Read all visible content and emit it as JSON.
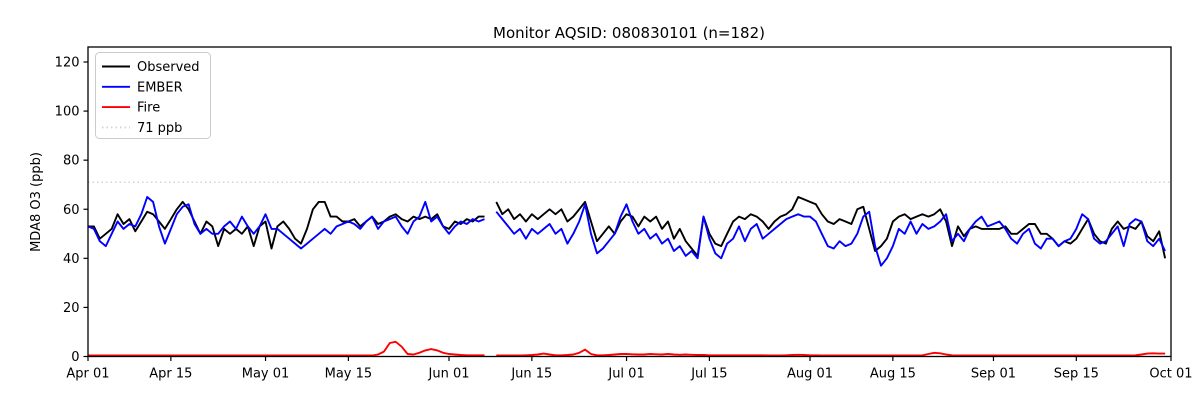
{
  "title": "Monitor AQSID: 080830101 (n=182)",
  "chart_data": {
    "type": "line",
    "title": "Monitor AQSID: 080830101 (n=182)",
    "xlabel": "",
    "ylabel": "MDA8 O3 (ppb)",
    "ylim": [
      0,
      126
    ],
    "y_ticks": [
      0,
      20,
      40,
      60,
      80,
      100,
      120
    ],
    "x_tick_labels": [
      "Apr 01",
      "Apr 15",
      "May 01",
      "May 15",
      "Jun 01",
      "Jun 15",
      "Jul 01",
      "Jul 15",
      "Aug 01",
      "Aug 15",
      "Sep 01",
      "Sep 15",
      "Oct 01"
    ],
    "x_tick_days": [
      0,
      14,
      30,
      44,
      61,
      75,
      91,
      105,
      122,
      136,
      153,
      167,
      183
    ],
    "x_domain_days": 183,
    "x_note": "daily MDA8 values from Apr 01 through Sep 30; null = missing day (Jun 08), n=182",
    "grid": false,
    "legend_position": "upper left",
    "threshold": {
      "label": "71 ppb",
      "value": 71,
      "color": "#d3d3d3",
      "style": "dotted"
    },
    "series": [
      {
        "name": "Observed",
        "color": "#000000",
        "values": [
          53,
          53,
          48,
          50,
          52,
          58,
          54,
          56,
          51,
          55,
          59,
          58,
          55,
          52,
          56,
          60,
          63,
          60,
          55,
          50,
          55,
          53,
          45,
          52,
          50,
          52,
          50,
          53,
          45,
          53,
          55,
          44,
          53,
          55,
          52,
          48,
          46,
          52,
          60,
          63,
          63,
          57,
          57,
          55,
          55,
          56,
          53,
          55,
          57,
          54,
          55,
          57,
          58,
          56,
          55,
          57,
          56,
          57,
          56,
          58,
          53,
          52,
          55,
          54,
          56,
          55,
          57,
          57,
          null,
          63,
          58,
          60,
          56,
          58,
          55,
          58,
          56,
          58,
          60,
          58,
          60,
          55,
          57,
          60,
          63,
          55,
          47,
          50,
          53,
          50,
          55,
          58,
          57,
          53,
          57,
          55,
          57,
          52,
          55,
          48,
          52,
          47,
          44,
          41,
          57,
          50,
          46,
          45,
          50,
          55,
          57,
          56,
          58,
          57,
          55,
          52,
          55,
          57,
          58,
          60,
          65,
          64,
          63,
          62,
          58,
          55,
          54,
          56,
          55,
          54,
          60,
          61,
          52,
          43,
          45,
          48,
          55,
          57,
          58,
          56,
          57,
          58,
          57,
          58,
          60,
          55,
          45,
          53,
          49,
          52,
          53,
          52,
          52,
          52,
          52,
          53,
          50,
          50,
          52,
          54,
          54,
          50,
          50,
          48,
          45,
          47,
          46,
          48,
          52,
          56,
          50,
          47,
          46,
          52,
          55,
          52,
          53,
          52,
          55,
          49,
          47,
          51,
          40
        ]
      },
      {
        "name": "EMBER",
        "color": "#0000ff",
        "values": [
          53,
          52,
          47,
          45,
          50,
          55,
          52,
          54,
          53,
          58,
          65,
          63,
          53,
          46,
          52,
          58,
          61,
          62,
          54,
          50,
          52,
          50,
          50,
          53,
          55,
          52,
          57,
          53,
          50,
          53,
          58,
          52,
          52,
          50,
          48,
          46,
          44,
          46,
          48,
          50,
          52,
          50,
          53,
          54,
          55,
          54,
          52,
          55,
          57,
          52,
          55,
          56,
          57,
          53,
          50,
          55,
          57,
          63,
          55,
          57,
          53,
          50,
          53,
          55,
          54,
          56,
          55,
          56,
          null,
          59,
          56,
          53,
          50,
          52,
          48,
          52,
          50,
          52,
          54,
          50,
          52,
          46,
          50,
          55,
          62,
          50,
          42,
          44,
          47,
          50,
          57,
          62,
          55,
          50,
          52,
          48,
          50,
          46,
          48,
          43,
          45,
          41,
          43,
          40,
          57,
          48,
          42,
          40,
          46,
          48,
          53,
          47,
          52,
          54,
          48,
          50,
          52,
          54,
          56,
          57,
          58,
          57,
          57,
          55,
          50,
          45,
          44,
          47,
          45,
          46,
          50,
          57,
          59,
          45,
          37,
          40,
          45,
          52,
          50,
          55,
          50,
          54,
          52,
          53,
          55,
          58,
          47,
          50,
          47,
          52,
          55,
          57,
          53,
          54,
          55,
          52,
          48,
          46,
          50,
          52,
          46,
          44,
          48,
          48,
          45,
          47,
          48,
          52,
          58,
          56,
          48,
          46,
          47,
          50,
          53,
          45,
          54,
          56,
          55,
          47,
          45,
          48,
          43
        ]
      },
      {
        "name": "Fire",
        "color": "#ff0000",
        "values": [
          0.4,
          0.4,
          0.4,
          0.4,
          0.4,
          0.4,
          0.4,
          0.4,
          0.4,
          0.4,
          0.4,
          0.4,
          0.4,
          0.4,
          0.4,
          0.4,
          0.4,
          0.4,
          0.4,
          0.4,
          0.4,
          0.4,
          0.4,
          0.4,
          0.4,
          0.4,
          0.4,
          0.4,
          0.4,
          0.4,
          0.4,
          0.4,
          0.4,
          0.4,
          0.4,
          0.4,
          0.4,
          0.4,
          0.4,
          0.4,
          0.4,
          0.4,
          0.4,
          0.4,
          0.4,
          0.4,
          0.4,
          0.4,
          0.4,
          0.8,
          2,
          5.5,
          6,
          4,
          1,
          0.8,
          1.5,
          2.5,
          3,
          2.5,
          1.5,
          1,
          0.8,
          0.6,
          0.5,
          0.5,
          0.5,
          0.5,
          null,
          0.4,
          0.4,
          0.4,
          0.4,
          0.4,
          0.5,
          0.6,
          0.8,
          1.2,
          0.8,
          0.5,
          0.5,
          0.6,
          0.8,
          1.5,
          2.8,
          1,
          0.5,
          0.5,
          0.6,
          0.8,
          1,
          1,
          0.9,
          0.8,
          0.8,
          1,
          0.9,
          0.8,
          1,
          0.8,
          0.7,
          0.8,
          0.7,
          0.6,
          0.6,
          0.5,
          0.5,
          0.5,
          0.5,
          0.5,
          0.5,
          0.5,
          0.5,
          0.5,
          0.5,
          0.4,
          0.4,
          0.4,
          0.5,
          0.6,
          0.7,
          0.6,
          0.5,
          0.5,
          0.4,
          0.4,
          0.4,
          0.4,
          0.4,
          0.4,
          0.4,
          0.4,
          0.4,
          0.4,
          0.4,
          0.4,
          0.4,
          0.4,
          0.4,
          0.4,
          0.4,
          0.5,
          1,
          1.5,
          1.3,
          0.8,
          0.5,
          0.4,
          0.4,
          0.4,
          0.4,
          0.4,
          0.4,
          0.4,
          0.4,
          0.4,
          0.4,
          0.4,
          0.4,
          0.4,
          0.4,
          0.4,
          0.4,
          0.4,
          0.4,
          0.4,
          0.4,
          0.4,
          0.4,
          0.4,
          0.4,
          0.4,
          0.4,
          0.4,
          0.4,
          0.4,
          0.4,
          0.5,
          0.8,
          1.2,
          1.3,
          1.2,
          1.2
        ]
      }
    ],
    "legend_entries": [
      {
        "label": "Observed",
        "color": "#000000",
        "style": "solid"
      },
      {
        "label": "EMBER",
        "color": "#0000ff",
        "style": "solid"
      },
      {
        "label": "Fire",
        "color": "#ff0000",
        "style": "solid"
      },
      {
        "label": "71 ppb",
        "color": "#d3d3d3",
        "style": "dotted"
      }
    ]
  }
}
